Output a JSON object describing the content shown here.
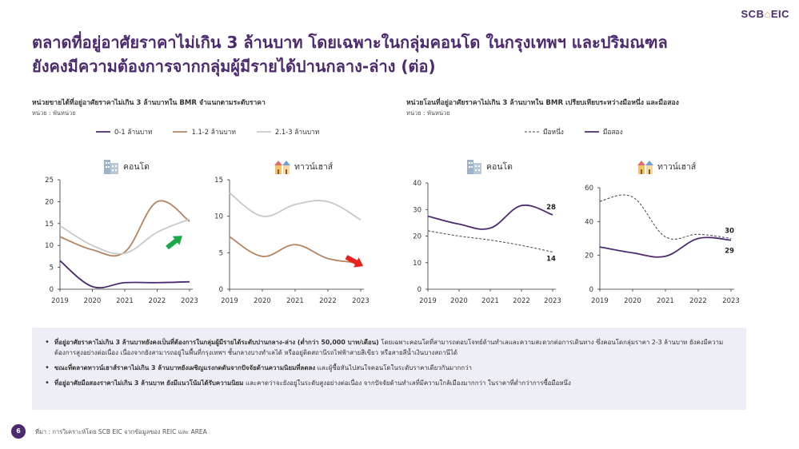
{
  "brand": {
    "logo_text_left": "SCB",
    "logo_text_right": "EIC"
  },
  "title": {
    "line1": "ตลาดที่อยู่อาศัยราคาไม่เกิน 3 ล้านบาท โดยเฉพาะในกลุ่มคอนโด ในกรุงเทพฯ และปริมณฑล",
    "line2": "ยังคงมีความต้องการจากกลุ่มผู้มีรายได้ปานกลาง-ล่าง (ต่อ)"
  },
  "left_panel": {
    "title": "หน่วยขายได้ที่อยู่อาศัยราคาไม่เกิน 3 ล้านบาทใน BMR จำแนกตามระดับราคา",
    "unit": "หน่วย : พันหน่วย",
    "legend": [
      "0-1 ล้านบาท",
      "1.1-2 ล้านบาท",
      "2.1-3 ล้านบาท"
    ]
  },
  "right_panel": {
    "title": "หน่วยโอนที่อยู่อาศัยราคาไม่เกิน 3 ล้านบาทใน BMR เปรียบเทียบระหว่างมือหนึ่ง และมือสอง",
    "unit": "หน่วย : พันหน่วย",
    "legend": [
      "มือหนึ่ง",
      "มือสอง"
    ]
  },
  "colors": {
    "series_0_1": "#4b2a6e",
    "series_1_2": "#b58460",
    "series_2_3": "#c8c8c8",
    "first_hand": "#444444",
    "second_hand": "#4b2a6e",
    "arrow_up": "#1aa84a",
    "arrow_down": "#e8231f"
  },
  "chart_data": [
    {
      "type": "line",
      "subtitle": "คอนโด",
      "x": [
        "2019",
        "2020",
        "2021",
        "2022",
        "2023"
      ],
      "ylim": [
        0,
        25
      ],
      "yticks": [
        0,
        5,
        10,
        15,
        20,
        25
      ],
      "series": [
        {
          "name": "0-1 ล้านบาท",
          "values": [
            6.5,
            0.6,
            1.5,
            1.5,
            1.7
          ]
        },
        {
          "name": "1.1-2 ล้านบาท",
          "values": [
            12,
            9,
            8.5,
            20,
            15.5
          ]
        },
        {
          "name": "2.1-3 ล้านบาท",
          "values": [
            14.5,
            10,
            8.2,
            13,
            16
          ]
        }
      ],
      "annotation_icon": "arrow-up-icon"
    },
    {
      "type": "line",
      "subtitle": "ทาวน์เฮาส์",
      "x": [
        "2019",
        "2020",
        "2021",
        "2022",
        "2023"
      ],
      "ylim": [
        0,
        15
      ],
      "yticks": [
        0,
        5,
        10,
        15
      ],
      "series": [
        {
          "name": "1.1-2 ล้านบาท",
          "values": [
            7.2,
            4.5,
            6.1,
            4.2,
            3.6
          ]
        },
        {
          "name": "2.1-3 ล้านบาท",
          "values": [
            13.2,
            10,
            11.6,
            12,
            9.5
          ]
        }
      ],
      "annotation_icon": "arrow-down-icon"
    },
    {
      "type": "line",
      "subtitle": "คอนโด",
      "x": [
        "2019",
        "2020",
        "2021",
        "2022",
        "2023"
      ],
      "ylim": [
        0,
        40
      ],
      "yticks": [
        0,
        10,
        20,
        30,
        40
      ],
      "series": [
        {
          "name": "มือหนึ่ง",
          "values": [
            22,
            20,
            18.5,
            16.5,
            14
          ],
          "end_label": "14"
        },
        {
          "name": "มือสอง",
          "values": [
            27.5,
            24.5,
            23,
            31.5,
            28
          ],
          "end_label": "28"
        }
      ]
    },
    {
      "type": "line",
      "subtitle": "ทาวน์เฮาส์",
      "x": [
        "2019",
        "2020",
        "2021",
        "2022",
        "2023"
      ],
      "ylim": [
        0,
        60
      ],
      "yticks": [
        0,
        20,
        40,
        60
      ],
      "series": [
        {
          "name": "มือหนึ่ง",
          "values": [
            52,
            54.5,
            31,
            32.5,
            30
          ],
          "end_label": "30"
        },
        {
          "name": "มือสอง",
          "values": [
            25,
            21.5,
            19.5,
            30,
            29
          ],
          "end_label": "29"
        }
      ]
    }
  ],
  "notes": [
    {
      "bold": "ที่อยู่อาศัยราคาไม่เกิน 3 ล้านบาทยังคงเป็นที่ต้องการในกลุ่มผู้มีรายได้ระดับปานกลาง-ล่าง (ต่ำกว่า 50,000 บาท/เดือน)",
      "text": " โดยเฉพาะคอนโดที่สามารถตอบโจทย์ด้านทำเลและความสะดวกต่อการเดินทาง ซึ่งคอนโดกลุ่มราคา 2-3 ล้านบาท ยังคงมีความต้องการสูงอย่างต่อเนื่อง เนื่องจากยังสามารถอยู่ในพื้นที่กรุงเทพฯ ชั้นกลางบางทำเลได้ หรืออยู่ติดสถานีรถไฟฟ้าสายสีเขียว หรือสายสีน้ำเงินบางสถานีได้"
    },
    {
      "bold": "ขณะที่ตลาดทาวน์เฮาส์ราคาไม่เกิน 3 ล้านบาทยังเผชิญแรงกดดันจากปัจจัยด้านความนิยมที่ลดลง",
      "text": " และผู้ซื้อหันไปสนใจคอนโดในระดับราคาเดียวกันมากกว่า"
    },
    {
      "bold": "ที่อยู่อาศัยมือสองราคาไม่เกิน 3 ล้านบาท ยังมีแนวโน้มได้รับความนิยม",
      "text": " และคาดว่าจะยังอยู่ในระดับสูงอย่างต่อเนื่อง จากปัจจัยด้านทำเลที่มีความใกล้เมืองมากกว่า ในราคาที่ต่ำกว่าการซื้อมือหนึ่ง"
    }
  ],
  "footer": {
    "page": "6",
    "source": "ที่มา : การวิเคราะห์โดย SCB EIC จากข้อมูลของ REIC และ AREA"
  }
}
